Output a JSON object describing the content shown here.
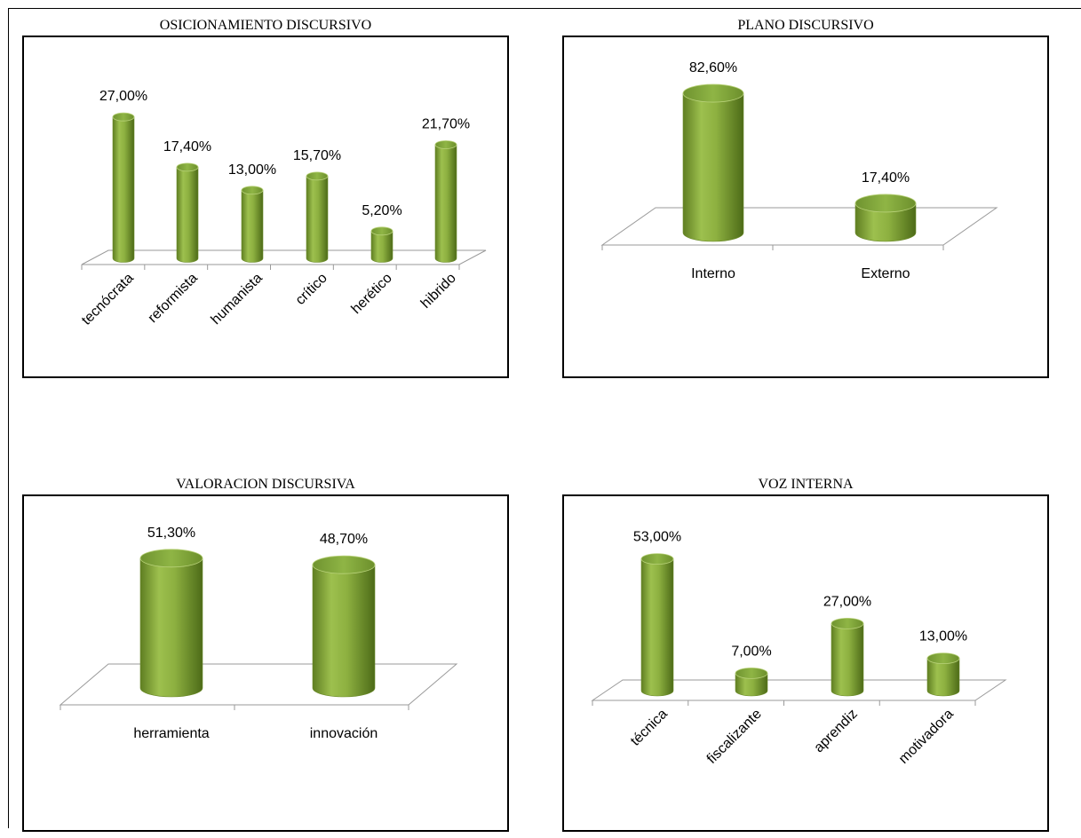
{
  "chart_data": [
    {
      "type": "bar",
      "title": "OSICIONAMIENTO DISCURSIVO",
      "categories": [
        "tecnócrata",
        "reformista",
        "humanista",
        "crítico",
        "herético",
        "hibrido"
      ],
      "values": [
        27.0,
        17.4,
        13.0,
        15.7,
        5.2,
        21.7
      ],
      "value_labels": [
        "27,00%",
        "17,40%",
        "13,00%",
        "15,70%",
        "5,20%",
        "21,70%"
      ],
      "bar_shape": "cylinder",
      "label_rotation": "diagonal",
      "bar_color": "#8db040",
      "grid": false
    },
    {
      "type": "bar",
      "title": "PLANO DISCURSIVO",
      "categories": [
        "Interno",
        "Externo"
      ],
      "values": [
        82.6,
        17.4
      ],
      "value_labels": [
        "82,60%",
        "17,40%"
      ],
      "bar_shape": "cylinder",
      "label_rotation": "horizontal",
      "bar_color": "#8db040",
      "grid": false
    },
    {
      "type": "bar",
      "title": "VALORACION DISCURSIVA",
      "categories": [
        "herramienta",
        "innovación"
      ],
      "values": [
        51.3,
        48.7
      ],
      "value_labels": [
        "51,30%",
        "48,70%"
      ],
      "bar_shape": "cylinder",
      "label_rotation": "horizontal",
      "bar_color": "#8db040",
      "grid": false
    },
    {
      "type": "bar",
      "title": "VOZ INTERNA",
      "categories": [
        "técnica",
        "fiscalizante",
        "aprendiz",
        "motivadora"
      ],
      "values": [
        53.0,
        7.0,
        27.0,
        13.0
      ],
      "value_labels": [
        "53,00%",
        "7,00%",
        "27,00%",
        "13,00%"
      ],
      "bar_shape": "cylinder",
      "label_rotation": "diagonal",
      "bar_color": "#8db040",
      "grid": false
    }
  ]
}
